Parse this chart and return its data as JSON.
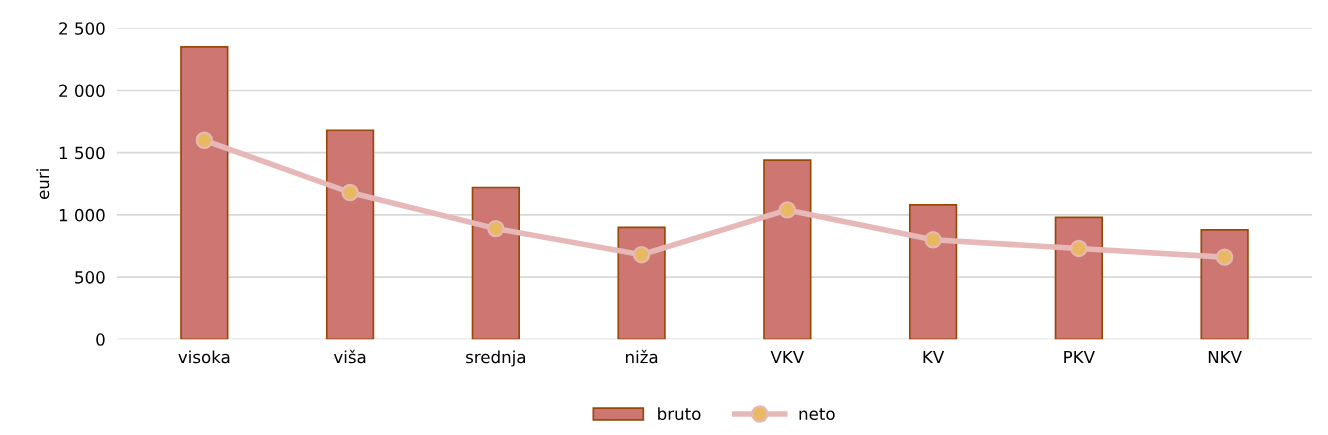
{
  "chart_data": {
    "type": "bar",
    "ylabel": "euri",
    "categories": [
      "visoka",
      "viša",
      "srednja",
      "niža",
      "VKV",
      "KV",
      "PKV",
      "NKV"
    ],
    "series": [
      {
        "name": "bruto",
        "color": "#cd7672",
        "values": [
          2350,
          1680,
          1220,
          900,
          1440,
          1080,
          980,
          880
        ]
      },
      {
        "name": "neto",
        "type": "line",
        "color": "#e6b8b7",
        "marker": "circle",
        "values": [
          1600,
          1180,
          890,
          680,
          1040,
          800,
          730,
          660
        ]
      }
    ],
    "ylim": [
      0,
      2500
    ],
    "yticks": [
      {
        "value": 0,
        "label": "0"
      },
      {
        "value": 500,
        "label": "500"
      },
      {
        "value": 1000,
        "label": "1 000"
      },
      {
        "value": 1500,
        "label": "1 500"
      },
      {
        "value": 2000,
        "label": "2 000"
      },
      {
        "value": 2500,
        "label": "2 500"
      }
    ],
    "grid": "y",
    "legend": "bottom"
  }
}
